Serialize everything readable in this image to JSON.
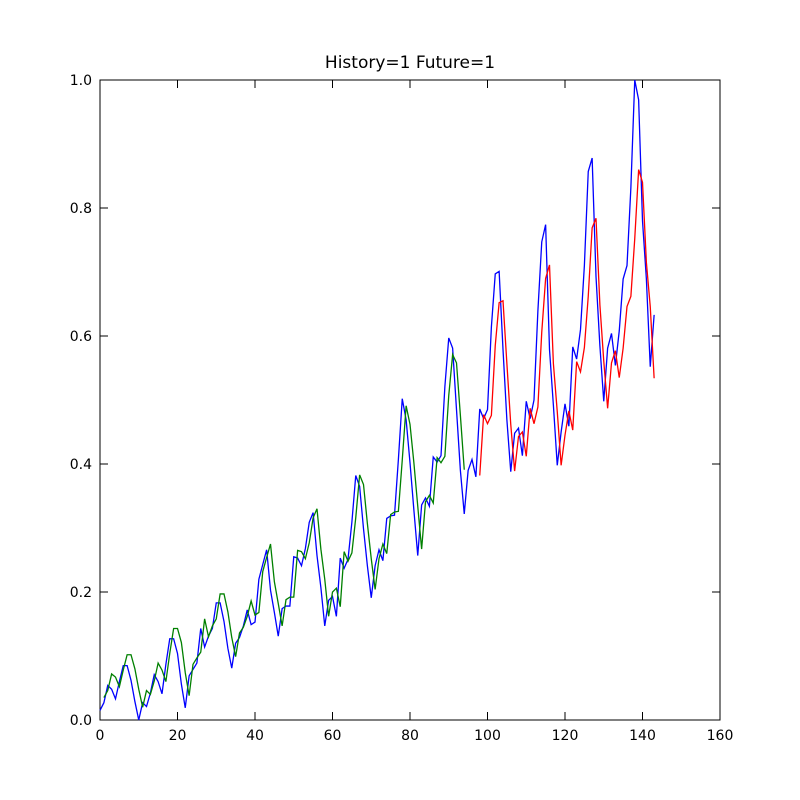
{
  "chart_data": {
    "type": "line",
    "title": "History=1 Future=1",
    "x": [
      0,
      1,
      2,
      3,
      4,
      5,
      6,
      7,
      8,
      9,
      10,
      11,
      12,
      13,
      14,
      15,
      16,
      17,
      18,
      19,
      20,
      21,
      22,
      23,
      24,
      25,
      26,
      27,
      28,
      29,
      30,
      31,
      32,
      33,
      34,
      35,
      36,
      37,
      38,
      39,
      40,
      41,
      42,
      43,
      44,
      45,
      46,
      47,
      48,
      49,
      50,
      51,
      52,
      53,
      54,
      55,
      56,
      57,
      58,
      59,
      60,
      61,
      62,
      63,
      64,
      65,
      66,
      67,
      68,
      69,
      70,
      71,
      72,
      73,
      74,
      75,
      76,
      77,
      78,
      79,
      80,
      81,
      82,
      83,
      84,
      85,
      86,
      87,
      88,
      89,
      90,
      91,
      92,
      93,
      94,
      95,
      96,
      97,
      98,
      99,
      100,
      101,
      102,
      103,
      104,
      105,
      106,
      107,
      108,
      109,
      110,
      111,
      112,
      113,
      114,
      115,
      116,
      117,
      118,
      119,
      120,
      121,
      122,
      123,
      124,
      125,
      126,
      127,
      128,
      129,
      130,
      131,
      132,
      133,
      134,
      135,
      136,
      137,
      138,
      139,
      140,
      141,
      142,
      143
    ],
    "series": [
      {
        "color": "#0000ff",
        "values": [
          0.015,
          0.027,
          0.054,
          0.048,
          0.033,
          0.06,
          0.085,
          0.085,
          0.062,
          0.029,
          0.0,
          0.027,
          0.021,
          0.042,
          0.071,
          0.06,
          0.041,
          0.087,
          0.127,
          0.127,
          0.104,
          0.056,
          0.019,
          0.069,
          0.079,
          0.089,
          0.143,
          0.114,
          0.131,
          0.143,
          0.183,
          0.183,
          0.154,
          0.112,
          0.081,
          0.12,
          0.129,
          0.147,
          0.172,
          0.149,
          0.153,
          0.22,
          0.243,
          0.266,
          0.203,
          0.168,
          0.131,
          0.174,
          0.178,
          0.178,
          0.255,
          0.253,
          0.241,
          0.268,
          0.309,
          0.324,
          0.257,
          0.207,
          0.147,
          0.187,
          0.193,
          0.162,
          0.253,
          0.237,
          0.251,
          0.309,
          0.382,
          0.365,
          0.299,
          0.241,
          0.191,
          0.241,
          0.266,
          0.249,
          0.315,
          0.319,
          0.32,
          0.407,
          0.502,
          0.469,
          0.402,
          0.328,
          0.257,
          0.336,
          0.347,
          0.334,
          0.411,
          0.403,
          0.413,
          0.521,
          0.597,
          0.581,
          0.485,
          0.39,
          0.322,
          0.39,
          0.407,
          0.38,
          0.486,
          0.471,
          0.485,
          0.614,
          0.697,
          0.701,
          0.579,
          0.469,
          0.388,
          0.448,
          0.456,
          0.413,
          0.498,
          0.471,
          0.5,
          0.639,
          0.747,
          0.774,
          0.579,
          0.492,
          0.398,
          0.45,
          0.494,
          0.459,
          0.583,
          0.564,
          0.61,
          0.71,
          0.857,
          0.878,
          0.693,
          0.585,
          0.498,
          0.581,
          0.604,
          0.554,
          0.608,
          0.689,
          0.71,
          0.832,
          1.0,
          0.969,
          0.78,
          0.689,
          0.552,
          0.633
        ]
      },
      {
        "color": "#008000",
        "values": [
          null,
          0.035,
          0.046,
          0.072,
          0.067,
          0.052,
          0.078,
          0.102,
          0.102,
          0.08,
          0.048,
          0.02,
          0.046,
          0.04,
          0.061,
          0.089,
          0.078,
          0.06,
          0.104,
          0.143,
          0.143,
          0.121,
          0.074,
          0.038,
          0.087,
          0.097,
          0.106,
          0.158,
          0.13,
          0.147,
          0.158,
          0.197,
          0.197,
          0.169,
          0.129,
          0.099,
          0.136,
          0.145,
          0.162,
          0.186,
          0.164,
          0.168,
          0.232,
          0.254,
          0.275,
          0.216,
          0.182,
          0.147,
          0.188,
          0.192,
          0.192,
          0.265,
          0.263,
          0.252,
          0.277,
          0.316,
          0.33,
          0.267,
          0.22,
          0.162,
          0.2,
          0.206,
          0.177,
          0.263,
          0.248,
          0.261,
          0.316,
          0.383,
          0.368,
          0.307,
          0.252,
          0.204,
          0.252,
          0.275,
          0.26,
          0.321,
          0.325,
          0.326,
          0.406,
          0.491,
          0.462,
          0.402,
          0.334,
          0.267,
          0.341,
          0.351,
          0.339,
          0.41,
          0.402,
          0.412,
          0.507,
          0.571,
          0.558,
          0.476,
          0.391,
          null,
          null,
          null,
          null,
          null,
          null,
          null,
          null,
          null,
          null,
          null,
          null,
          null,
          null,
          null,
          null,
          null,
          null,
          null,
          null,
          null,
          null,
          null,
          null,
          null,
          null,
          null,
          null,
          null,
          null,
          null,
          null,
          null,
          null,
          null,
          null,
          null,
          null,
          null,
          null,
          null,
          null,
          null,
          null,
          null,
          null,
          null,
          null,
          null
        ]
      },
      {
        "color": "#ff0000",
        "values": [
          null,
          null,
          null,
          null,
          null,
          null,
          null,
          null,
          null,
          null,
          null,
          null,
          null,
          null,
          null,
          null,
          null,
          null,
          null,
          null,
          null,
          null,
          null,
          null,
          null,
          null,
          null,
          null,
          null,
          null,
          null,
          null,
          null,
          null,
          null,
          null,
          null,
          null,
          null,
          null,
          null,
          null,
          null,
          null,
          null,
          null,
          null,
          null,
          null,
          null,
          null,
          null,
          null,
          null,
          null,
          null,
          null,
          null,
          null,
          null,
          null,
          null,
          null,
          null,
          null,
          null,
          null,
          null,
          null,
          null,
          null,
          null,
          null,
          null,
          null,
          null,
          null,
          null,
          null,
          null,
          null,
          null,
          null,
          null,
          null,
          null,
          null,
          null,
          null,
          null,
          null,
          null,
          null,
          null,
          null,
          null,
          null,
          null,
          0.382,
          0.477,
          0.463,
          0.476,
          0.585,
          0.652,
          0.655,
          0.557,
          0.462,
          0.389,
          0.443,
          0.45,
          0.412,
          0.487,
          0.463,
          0.489,
          0.606,
          0.69,
          0.711,
          0.557,
          0.482,
          0.398,
          0.445,
          0.483,
          0.453,
          0.56,
          0.544,
          0.582,
          0.662,
          0.769,
          0.784,
          0.649,
          0.561,
          0.487,
          0.558,
          0.577,
          0.535,
          0.581,
          0.646,
          0.662,
          0.752,
          0.86,
          0.84,
          0.715,
          0.646,
          0.534
        ]
      }
    ],
    "xlim": [
      0,
      160
    ],
    "ylim": [
      0,
      1
    ],
    "xticks": [
      0,
      20,
      40,
      60,
      80,
      100,
      120,
      140,
      160
    ],
    "yticks": [
      {
        "value": 0,
        "label": "0.0"
      },
      0.2,
      0.4,
      0.6,
      0.8,
      {
        "value": 1,
        "label": "1.0"
      }
    ]
  }
}
